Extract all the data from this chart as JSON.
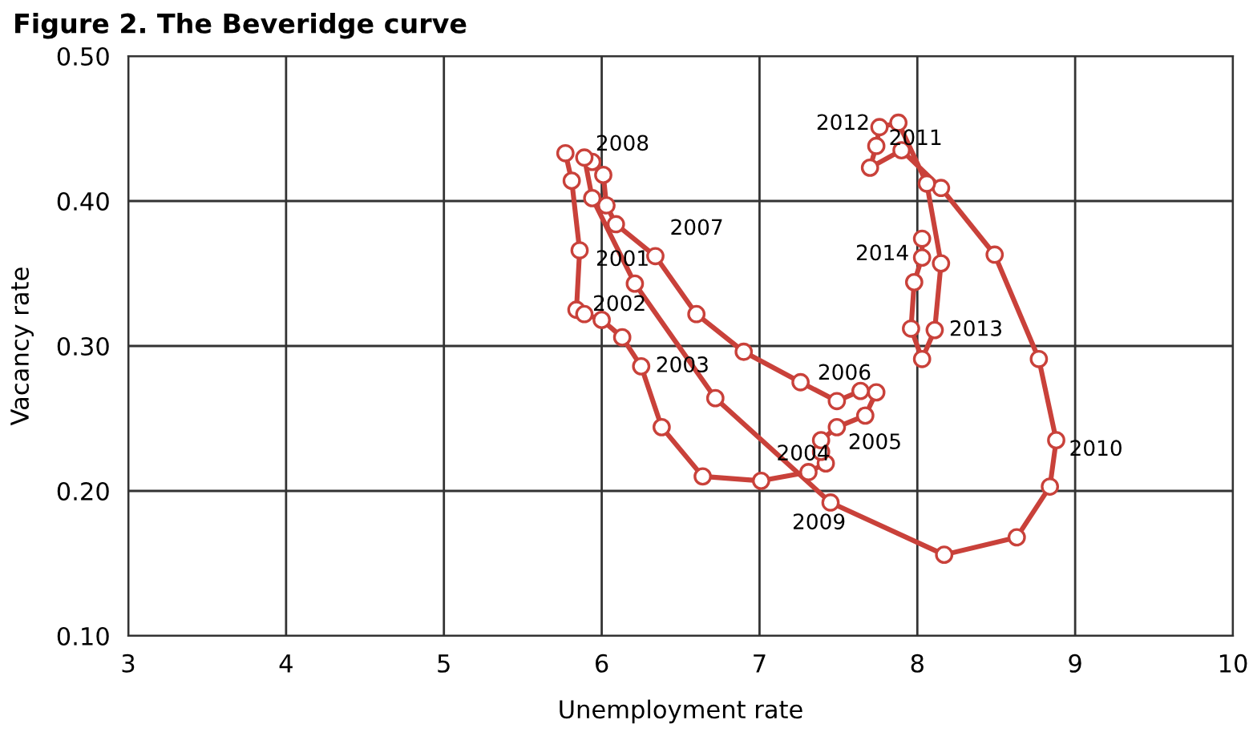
{
  "chart_data": {
    "type": "line",
    "title": "Figure 2. The Beveridge curve",
    "xlabel": "Unemployment rate",
    "ylabel": "Vacancy rate",
    "xlim": [
      3,
      10
    ],
    "xticks": [
      3,
      4,
      5,
      6,
      7,
      8,
      9,
      10
    ],
    "ylim": [
      0.1,
      0.5
    ],
    "yticks": [
      {
        "value": 0.1,
        "label": "0.10"
      },
      {
        "value": 0.2,
        "label": "0.20"
      },
      {
        "value": 0.3,
        "label": "0.30"
      },
      {
        "value": 0.4,
        "label": "0.40"
      },
      {
        "value": 0.5,
        "label": "0.50"
      }
    ],
    "grid": true,
    "marker": "circle",
    "line_style": "solid",
    "series": [
      {
        "color": "#c9413a",
        "x": [
          5.77,
          5.81,
          5.86,
          5.84,
          5.89,
          6.0,
          6.13,
          6.25,
          6.38,
          6.64,
          7.01,
          7.31,
          7.42,
          7.39,
          7.39,
          7.49,
          7.67,
          7.74,
          7.64,
          7.49,
          7.26,
          6.9,
          6.6,
          6.34,
          6.09,
          6.03,
          6.01,
          5.94,
          5.89,
          5.94,
          6.21,
          6.72,
          7.45,
          8.17,
          8.63,
          8.84,
          8.88,
          8.77,
          8.49,
          8.15,
          7.9,
          7.7,
          7.74,
          7.76,
          7.88,
          8.06,
          8.15,
          8.11,
          8.03,
          7.96,
          7.98,
          8.03,
          8.03
        ],
        "values": [
          0.433,
          0.414,
          0.366,
          0.325,
          0.322,
          0.318,
          0.306,
          0.286,
          0.244,
          0.21,
          0.207,
          0.213,
          0.219,
          0.227,
          0.235,
          0.244,
          0.252,
          0.268,
          0.269,
          0.262,
          0.275,
          0.296,
          0.322,
          0.362,
          0.384,
          0.397,
          0.418,
          0.427,
          0.43,
          0.402,
          0.343,
          0.264,
          0.192,
          0.156,
          0.168,
          0.203,
          0.235,
          0.291,
          0.363,
          0.409,
          0.435,
          0.423,
          0.438,
          0.451,
          0.454,
          0.412,
          0.357,
          0.311,
          0.291,
          0.312,
          0.344,
          0.361,
          0.374
        ]
      }
    ],
    "annotations": [
      {
        "text": "2001",
        "x": 5.86,
        "y": 0.366
      },
      {
        "text": "2002",
        "x": 5.84,
        "y": 0.325
      },
      {
        "text": "2003",
        "x": 6.25,
        "y": 0.286
      },
      {
        "text": "2004",
        "x": 7.31,
        "y": 0.213
      },
      {
        "text": "2005",
        "x": 7.49,
        "y": 0.244
      },
      {
        "text": "2006",
        "x": 7.49,
        "y": 0.262
      },
      {
        "text": "2007",
        "x": 6.34,
        "y": 0.362
      },
      {
        "text": "2008",
        "x": 5.89,
        "y": 0.43
      },
      {
        "text": "2009",
        "x": 7.45,
        "y": 0.192
      },
      {
        "text": "2010",
        "x": 8.88,
        "y": 0.235
      },
      {
        "text": "2011",
        "x": 7.9,
        "y": 0.435
      },
      {
        "text": "2012",
        "x": 7.76,
        "y": 0.451
      },
      {
        "text": "2013",
        "x": 8.11,
        "y": 0.311
      },
      {
        "text": "2014",
        "x": 8.03,
        "y": 0.361
      }
    ]
  }
}
